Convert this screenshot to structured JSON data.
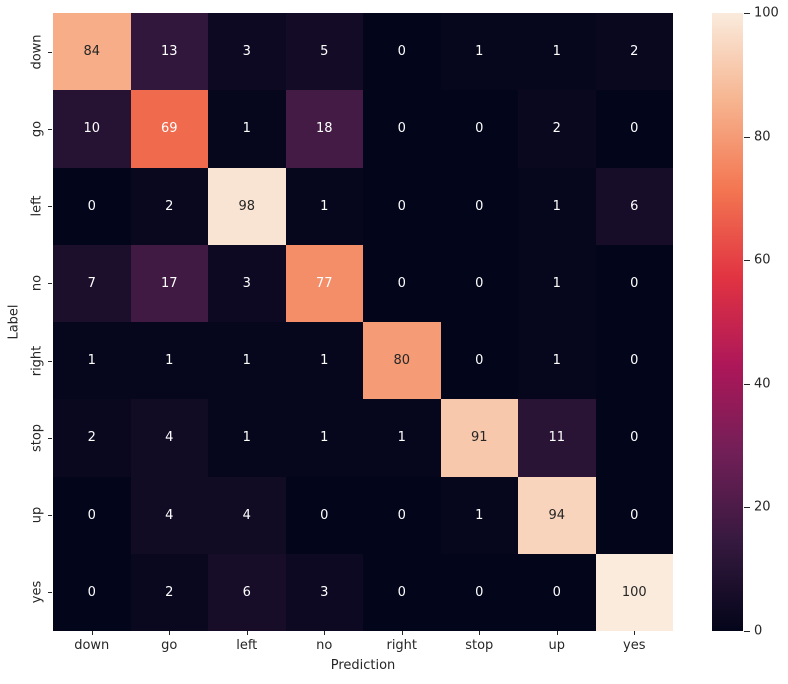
{
  "figure": {
    "background": "#ffffff",
    "text_color": "#262626"
  },
  "chart_data": {
    "type": "heatmap",
    "title": "",
    "xlabel": "Prediction",
    "ylabel": "Label",
    "x_categories": [
      "down",
      "go",
      "left",
      "no",
      "right",
      "stop",
      "up",
      "yes"
    ],
    "y_categories": [
      "down",
      "go",
      "left",
      "no",
      "right",
      "stop",
      "up",
      "yes"
    ],
    "matrix": [
      [
        84,
        13,
        3,
        5,
        0,
        1,
        1,
        2
      ],
      [
        10,
        69,
        1,
        18,
        0,
        0,
        2,
        0
      ],
      [
        0,
        2,
        98,
        1,
        0,
        0,
        1,
        6
      ],
      [
        7,
        17,
        3,
        77,
        0,
        0,
        1,
        0
      ],
      [
        1,
        1,
        1,
        1,
        80,
        0,
        1,
        0
      ],
      [
        2,
        4,
        1,
        1,
        1,
        91,
        11,
        0
      ],
      [
        0,
        4,
        4,
        0,
        0,
        1,
        94,
        0
      ],
      [
        0,
        2,
        6,
        3,
        0,
        0,
        0,
        100
      ]
    ],
    "vmin": 0,
    "vmax": 100,
    "grid": false,
    "colorbar": {
      "position": "right",
      "ticks": [
        0,
        20,
        40,
        60,
        80,
        100
      ]
    },
    "colormap": {
      "name": "rocket",
      "stops": [
        {
          "t": 0.0,
          "color": "#03051A"
        },
        {
          "t": 0.143,
          "color": "#35193E"
        },
        {
          "t": 0.286,
          "color": "#701F57"
        },
        {
          "t": 0.429,
          "color": "#AD1759"
        },
        {
          "t": 0.571,
          "color": "#E13342"
        },
        {
          "t": 0.714,
          "color": "#F37651"
        },
        {
          "t": 0.857,
          "color": "#F6B48F"
        },
        {
          "t": 1.0,
          "color": "#FAEBDD"
        }
      ]
    },
    "annotation_text": {
      "light_color": "#FFFFFF",
      "dark_color": "#262626",
      "luminance_threshold": 0.4
    }
  }
}
